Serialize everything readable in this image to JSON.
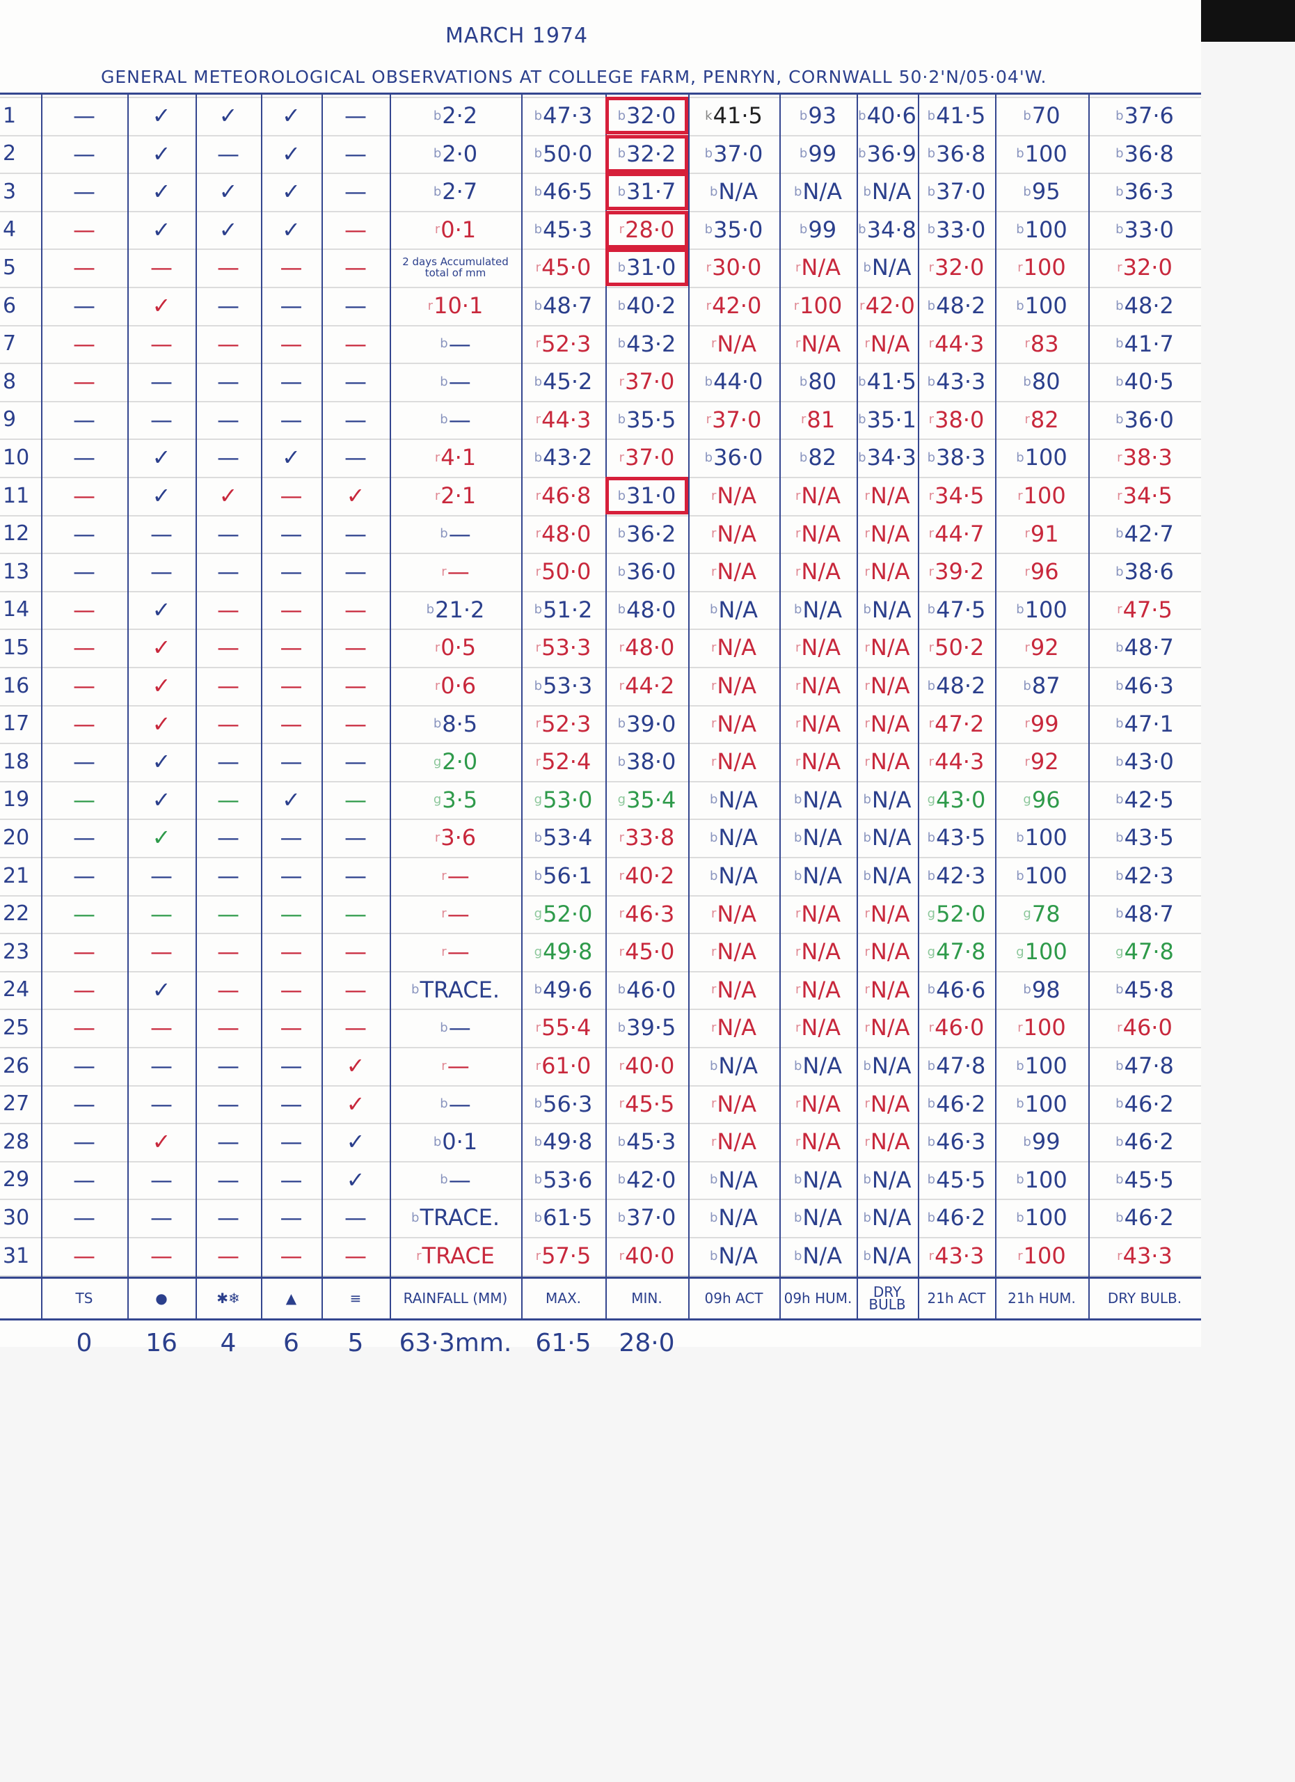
{
  "title": "MARCH 1974",
  "subtitle": "GENERAL METEOROLOGICAL OBSERVATIONS AT COLLEGE FARM, PENRYN, CORNWALL 50·2'N/05·04'W.",
  "colors": {
    "b": "#2b3f8c",
    "r": "#c8283c",
    "g": "#2e9a4a",
    "k": "#222222",
    "box": "#d61f3a"
  },
  "columns": [
    "TS",
    "●",
    "✱❄",
    "▲",
    "≡",
    "RAINFALL (MM)",
    "MAX.",
    "MIN.",
    "09h ACT",
    "09h HUM.",
    "DRY BULB",
    "21h ACT",
    "21h HUM.",
    "DRY BULB."
  ],
  "totals": [
    "0",
    "16",
    "4",
    "6",
    "5",
    "63·3mm.",
    "61·5",
    "28·0"
  ],
  "rows": [
    {
      "day": "1",
      "sym": [
        "b—",
        "b✓",
        "b✓",
        "b✓",
        "b—"
      ],
      "rain": "b2·2",
      "vals": [
        "b47·3",
        "b32·0",
        "k41·5",
        "b93",
        "b40·6",
        "b41·5",
        "b70",
        "b37·6"
      ],
      "box": true
    },
    {
      "day": "2",
      "sym": [
        "b—",
        "b✓",
        "b—",
        "b✓",
        "b—"
      ],
      "rain": "b2·0",
      "vals": [
        "b50·0",
        "b32·2",
        "b37·0",
        "b99",
        "b36·9",
        "b36·8",
        "b100",
        "b36·8"
      ],
      "box": true
    },
    {
      "day": "3",
      "sym": [
        "b—",
        "b✓",
        "b✓",
        "b✓",
        "b—"
      ],
      "rain": "b2·7",
      "vals": [
        "b46·5",
        "b31·7",
        "bN/A",
        "bN/A",
        "bN/A",
        "b37·0",
        "b95",
        "b36·3"
      ],
      "box": true
    },
    {
      "day": "4",
      "sym": [
        "r—",
        "b✓",
        "b✓",
        "b✓",
        "r—"
      ],
      "rain": "r0·1",
      "vals": [
        "b45·3",
        "r28·0",
        "b35·0",
        "b99",
        "b34·8",
        "b33·0",
        "b100",
        "b33·0"
      ],
      "box": true
    },
    {
      "day": "5",
      "sym": [
        "r—",
        "r—",
        "r—",
        "r—",
        "r—"
      ],
      "rain": "",
      "rain_note": "2 days Accumulated total of mm",
      "vals": [
        "r45·0",
        "b31·0",
        "r30·0",
        "rN/A",
        "bN/A",
        "r32·0",
        "r100",
        "r32·0"
      ],
      "box": true
    },
    {
      "day": "6",
      "sym": [
        "b—",
        "r✓",
        "b—",
        "b—",
        "b—"
      ],
      "rain": "r10·1",
      "vals": [
        "b48·7",
        "b40·2",
        "r42·0",
        "r100",
        "r42·0",
        "b48·2",
        "b100",
        "b48·2"
      ]
    },
    {
      "day": "7",
      "sym": [
        "r—",
        "r—",
        "r—",
        "r—",
        "r—"
      ],
      "rain": "b—",
      "vals": [
        "r52·3",
        "b43·2",
        "rN/A",
        "rN/A",
        "rN/A",
        "r44·3",
        "r83",
        "b41·7"
      ]
    },
    {
      "day": "8",
      "sym": [
        "r—",
        "b—",
        "b—",
        "b—",
        "b—"
      ],
      "rain": "b—",
      "vals": [
        "b45·2",
        "r37·0",
        "b44·0",
        "b80",
        "b41·5",
        "b43·3",
        "b80",
        "b40·5"
      ]
    },
    {
      "day": "9",
      "sym": [
        "b—",
        "b—",
        "b—",
        "b—",
        "b—"
      ],
      "rain": "b—",
      "vals": [
        "r44·3",
        "b35·5",
        "r37·0",
        "r81",
        "b35·1",
        "r38·0",
        "r82",
        "b36·0"
      ]
    },
    {
      "day": "10",
      "sym": [
        "b—",
        "b✓",
        "b—",
        "b✓",
        "b—"
      ],
      "rain": "r4·1",
      "vals": [
        "b43·2",
        "r37·0",
        "b36·0",
        "b82",
        "b34·3",
        "b38·3",
        "b100",
        "r38·3"
      ]
    },
    {
      "day": "11",
      "sym": [
        "r—",
        "b✓",
        "r✓",
        "r—",
        "r✓"
      ],
      "rain": "r2·1",
      "vals": [
        "r46·8",
        "b31·0",
        "rN/A",
        "rN/A",
        "rN/A",
        "r34·5",
        "r100",
        "r34·5"
      ],
      "box": true
    },
    {
      "day": "12",
      "sym": [
        "b—",
        "b—",
        "b—",
        "b—",
        "b—"
      ],
      "rain": "b—",
      "vals": [
        "r48·0",
        "b36·2",
        "rN/A",
        "rN/A",
        "rN/A",
        "r44·7",
        "r91",
        "b42·7"
      ]
    },
    {
      "day": "13",
      "sym": [
        "b—",
        "b—",
        "b—",
        "b—",
        "b—"
      ],
      "rain": "r—",
      "vals": [
        "r50·0",
        "b36·0",
        "rN/A",
        "rN/A",
        "rN/A",
        "r39·2",
        "r96",
        "b38·6"
      ]
    },
    {
      "day": "14",
      "sym": [
        "r—",
        "b✓",
        "r—",
        "r—",
        "r—"
      ],
      "rain": "b21·2",
      "vals": [
        "b51·2",
        "b48·0",
        "bN/A",
        "bN/A",
        "bN/A",
        "b47·5",
        "b100",
        "r47·5"
      ]
    },
    {
      "day": "15",
      "sym": [
        "r—",
        "r✓",
        "r—",
        "r—",
        "r—"
      ],
      "rain": "r0·5",
      "vals": [
        "r53·3",
        "r48·0",
        "rN/A",
        "rN/A",
        "rN/A",
        "r50·2",
        "r92",
        "b48·7"
      ]
    },
    {
      "day": "16",
      "sym": [
        "r—",
        "r✓",
        "r—",
        "r—",
        "r—"
      ],
      "rain": "r0·6",
      "vals": [
        "b53·3",
        "r44·2",
        "rN/A",
        "rN/A",
        "rN/A",
        "b48·2",
        "b87",
        "b46·3"
      ]
    },
    {
      "day": "17",
      "sym": [
        "r—",
        "r✓",
        "r—",
        "r—",
        "r—"
      ],
      "rain": "b8·5",
      "vals": [
        "r52·3",
        "b39·0",
        "rN/A",
        "rN/A",
        "rN/A",
        "r47·2",
        "r99",
        "b47·1"
      ]
    },
    {
      "day": "18",
      "sym": [
        "b—",
        "b✓",
        "b—",
        "b—",
        "b—"
      ],
      "rain": "g2·0",
      "vals": [
        "r52·4",
        "b38·0",
        "rN/A",
        "rN/A",
        "rN/A",
        "r44·3",
        "r92",
        "b43·0"
      ]
    },
    {
      "day": "19",
      "sym": [
        "g—",
        "b✓",
        "g—",
        "b✓",
        "g—"
      ],
      "rain": "g3·5",
      "vals": [
        "g53·0",
        "g35·4",
        "bN/A",
        "bN/A",
        "bN/A",
        "g43·0",
        "g96",
        "b42·5"
      ]
    },
    {
      "day": "20",
      "sym": [
        "b—",
        "g✓",
        "b—",
        "b—",
        "b—"
      ],
      "rain": "r3·6",
      "vals": [
        "b53·4",
        "r33·8",
        "bN/A",
        "bN/A",
        "bN/A",
        "b43·5",
        "b100",
        "b43·5"
      ]
    },
    {
      "day": "21",
      "sym": [
        "b—",
        "b—",
        "b—",
        "b—",
        "b—"
      ],
      "rain": "r—",
      "vals": [
        "b56·1",
        "r40·2",
        "bN/A",
        "bN/A",
        "bN/A",
        "b42·3",
        "b100",
        "b42·3"
      ]
    },
    {
      "day": "22",
      "sym": [
        "g—",
        "g—",
        "g—",
        "g—",
        "g—"
      ],
      "rain": "r—",
      "vals": [
        "g52·0",
        "r46·3",
        "rN/A",
        "rN/A",
        "rN/A",
        "g52·0",
        "g78",
        "b48·7"
      ]
    },
    {
      "day": "23",
      "sym": [
        "r—",
        "r—",
        "r—",
        "r—",
        "r—"
      ],
      "rain": "r—",
      "vals": [
        "g49·8",
        "r45·0",
        "rN/A",
        "rN/A",
        "rN/A",
        "g47·8",
        "g100",
        "g47·8"
      ]
    },
    {
      "day": "24",
      "sym": [
        "r—",
        "b✓",
        "r—",
        "r—",
        "r—"
      ],
      "rain": "bTRACE.",
      "vals": [
        "b49·6",
        "b46·0",
        "rN/A",
        "rN/A",
        "rN/A",
        "b46·6",
        "b98",
        "b45·8"
      ]
    },
    {
      "day": "25",
      "sym": [
        "r—",
        "r—",
        "r—",
        "r—",
        "r—"
      ],
      "rain": "b—",
      "vals": [
        "r55·4",
        "b39·5",
        "rN/A",
        "rN/A",
        "rN/A",
        "r46·0",
        "r100",
        "r46·0"
      ]
    },
    {
      "day": "26",
      "sym": [
        "b—",
        "b—",
        "b—",
        "b—",
        "r✓"
      ],
      "rain": "r—",
      "vals": [
        "r61·0",
        "r40·0",
        "bN/A",
        "bN/A",
        "bN/A",
        "b47·8",
        "b100",
        "b47·8"
      ]
    },
    {
      "day": "27",
      "sym": [
        "b—",
        "b—",
        "b—",
        "b—",
        "r✓"
      ],
      "rain": "b—",
      "vals": [
        "b56·3",
        "r45·5",
        "rN/A",
        "rN/A",
        "rN/A",
        "b46·2",
        "b100",
        "b46·2"
      ]
    },
    {
      "day": "28",
      "sym": [
        "b—",
        "r✓",
        "b—",
        "b—",
        "b✓"
      ],
      "rain": "b0·1",
      "vals": [
        "b49·8",
        "b45·3",
        "rN/A",
        "rN/A",
        "rN/A",
        "b46·3",
        "b99",
        "b46·2"
      ]
    },
    {
      "day": "29",
      "sym": [
        "b—",
        "b—",
        "b—",
        "b—",
        "b✓"
      ],
      "rain": "b—",
      "vals": [
        "b53·6",
        "b42·0",
        "bN/A",
        "bN/A",
        "bN/A",
        "b45·5",
        "b100",
        "b45·5"
      ]
    },
    {
      "day": "30",
      "sym": [
        "b—",
        "b—",
        "b—",
        "b—",
        "b—"
      ],
      "rain": "bTRACE.",
      "vals": [
        "b61·5",
        "b37·0",
        "bN/A",
        "bN/A",
        "bN/A",
        "b46·2",
        "b100",
        "b46·2"
      ]
    },
    {
      "day": "31",
      "sym": [
        "r—",
        "r—",
        "r—",
        "r—",
        "r—"
      ],
      "rain": "rTRACE",
      "vals": [
        "r57·5",
        "r40·0",
        "bN/A",
        "bN/A",
        "bN/A",
        "r43·3",
        "r100",
        "r43·3"
      ]
    }
  ]
}
